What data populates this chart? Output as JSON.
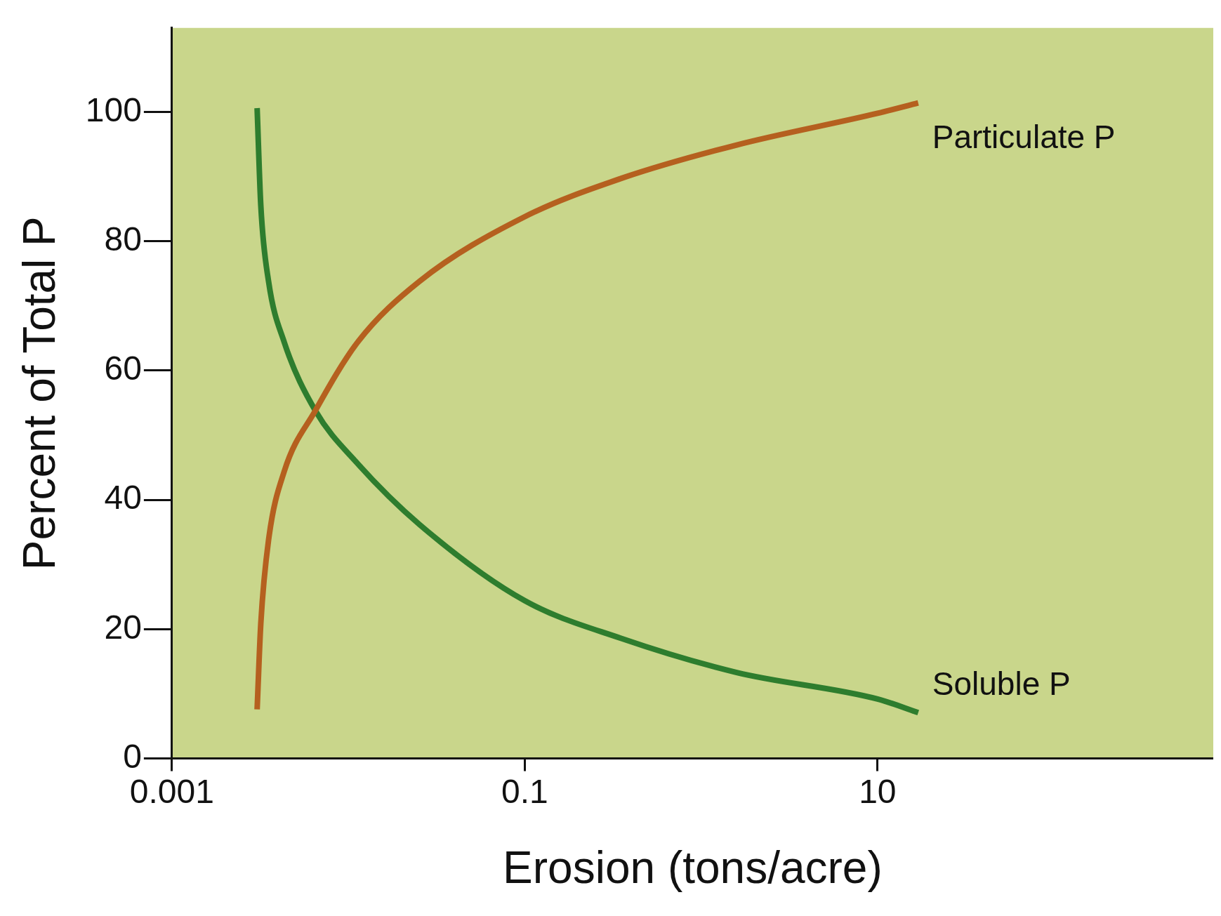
{
  "chart_data": {
    "type": "line",
    "xlabel": "Erosion (tons/acre)",
    "ylabel": "Percent of Total P",
    "log": "x",
    "xlim": [
      0.001,
      800
    ],
    "xticks": [
      0.001,
      0.1,
      10
    ],
    "ylim": [
      0,
      113
    ],
    "yticks": [
      0,
      20,
      40,
      60,
      80,
      100
    ],
    "grid": false,
    "legend": false,
    "marker": "none",
    "line_style": "solid",
    "series": [
      {
        "name": "Particulate P",
        "color": "#b5601f",
        "x": [
          0.00304,
          0.00319,
          0.00353,
          0.00433,
          0.0065,
          0.0113,
          0.0253,
          0.1,
          0.35,
          1.59,
          10,
          17
        ],
        "values": [
          7.6,
          20.9,
          33.8,
          44.4,
          53.8,
          64.4,
          73.8,
          83.8,
          89.7,
          94.9,
          99.8,
          101.4
        ]
      },
      {
        "name": "Soluble P",
        "color": "#2e7d2e",
        "x": [
          0.00304,
          0.00319,
          0.00353,
          0.00433,
          0.0065,
          0.0113,
          0.0253,
          0.1,
          0.35,
          1.59,
          10,
          17
        ],
        "values": [
          100.6,
          85.5,
          73.8,
          64.4,
          53.8,
          45.6,
          36.2,
          24.4,
          18.6,
          13.3,
          9.2,
          7.1
        ]
      }
    ]
  }
}
